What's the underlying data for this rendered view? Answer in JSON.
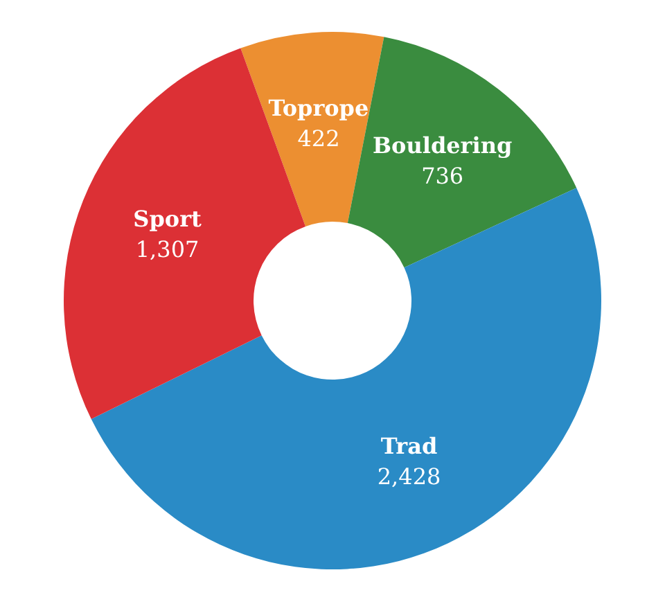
{
  "chart_data": {
    "type": "donut",
    "categories": [
      "Toprope",
      "Bouldering",
      "Trad",
      "Sport"
    ],
    "values": [
      422,
      736,
      2428,
      1307
    ],
    "colors": [
      "#ec8f31",
      "#3a8c3f",
      "#2a8bc6",
      "#dc3035"
    ],
    "value_labels": [
      "422",
      "736",
      "2,428",
      "1,307"
    ]
  }
}
